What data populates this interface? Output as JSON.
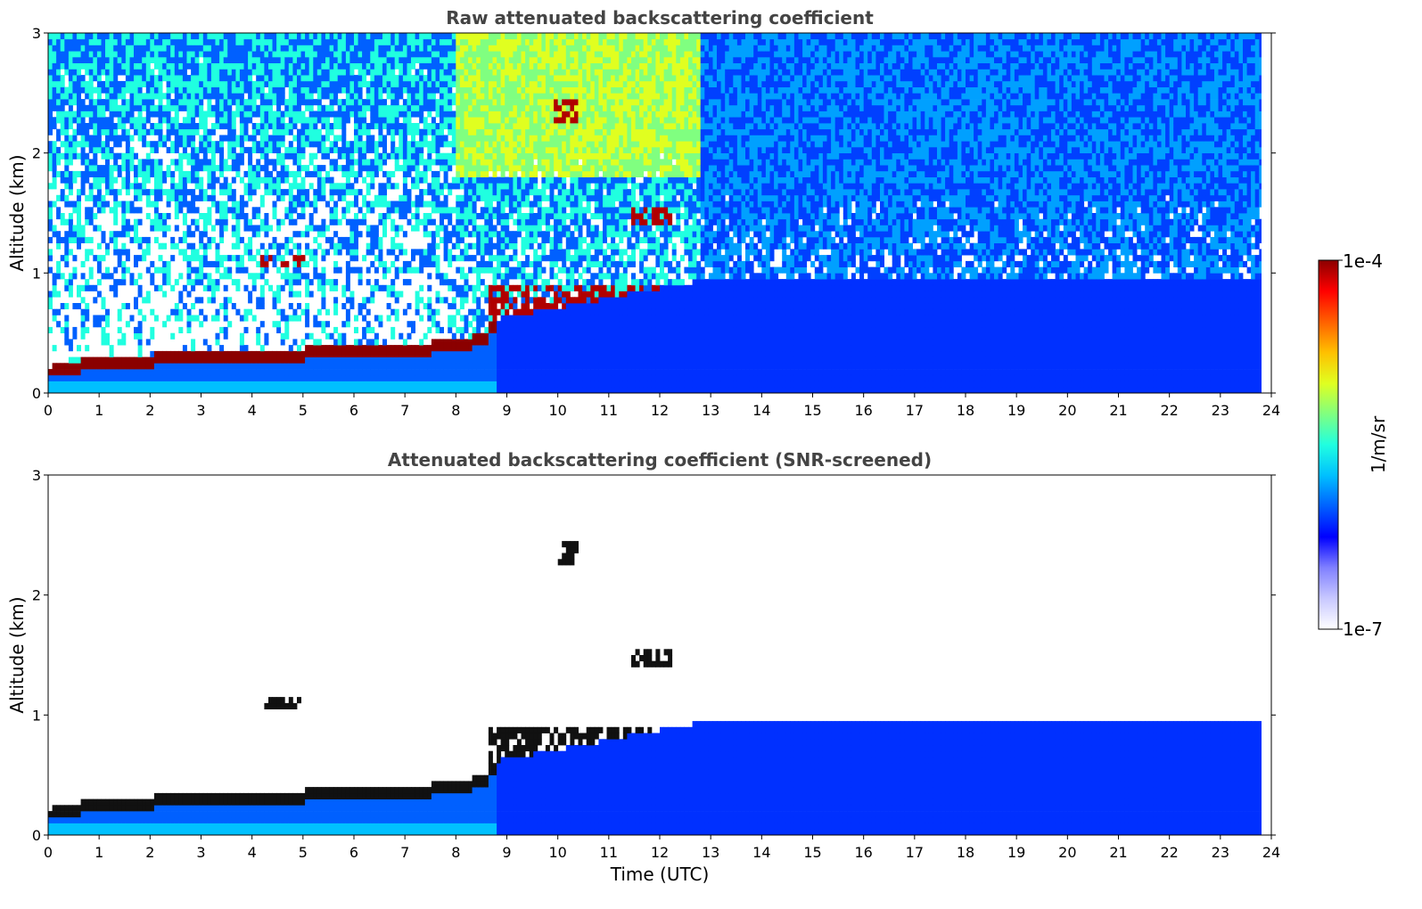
{
  "chart_data": [
    {
      "type": "heatmap",
      "title": "Raw attenuated backscattering coefficient",
      "xlabel": "",
      "ylabel": "Altitude (km)",
      "xlim": [
        0,
        24
      ],
      "ylim": [
        0,
        3
      ],
      "xticks": [
        "0",
        "1",
        "2",
        "3",
        "4",
        "5",
        "6",
        "7",
        "8",
        "9",
        "10",
        "11",
        "12",
        "13",
        "14",
        "15",
        "16",
        "17",
        "18",
        "19",
        "20",
        "21",
        "22",
        "23",
        "24"
      ],
      "yticks": [
        "0",
        "1",
        "2",
        "3"
      ],
      "data_end_time": 23.8,
      "features": [
        {
          "kind": "boundary-layer",
          "x": [
            0,
            1,
            2,
            3,
            4,
            5,
            6,
            7,
            8,
            8.6
          ],
          "top_km": [
            0.2,
            0.28,
            0.3,
            0.31,
            0.33,
            0.35,
            0.36,
            0.38,
            0.42,
            0.48
          ]
        },
        {
          "kind": "cloud",
          "x": [
            4.1,
            5.0
          ],
          "y": [
            1.05,
            1.15
          ]
        },
        {
          "kind": "cloud",
          "x": [
            9.9,
            10.4
          ],
          "y": [
            2.25,
            2.4
          ]
        },
        {
          "kind": "cloud",
          "x": [
            11.4,
            12.2
          ],
          "y": [
            1.4,
            1.55
          ]
        },
        {
          "kind": "cloud",
          "x": [
            8.6,
            12.5
          ],
          "y": [
            0.6,
            0.9
          ]
        }
      ]
    },
    {
      "type": "heatmap",
      "title": "Attenuated backscattering coefficient (SNR-screened)",
      "xlabel": "Time (UTC)",
      "ylabel": "Altitude (km)",
      "xlim": [
        0,
        24
      ],
      "ylim": [
        0,
        3
      ],
      "xticks": [
        "0",
        "1",
        "2",
        "3",
        "4",
        "5",
        "6",
        "7",
        "8",
        "9",
        "10",
        "11",
        "12",
        "13",
        "14",
        "15",
        "16",
        "17",
        "18",
        "19",
        "20",
        "21",
        "22",
        "23",
        "24"
      ],
      "yticks": [
        "0",
        "1",
        "2",
        "3"
      ],
      "data_end_time": 23.8
    }
  ],
  "colorbar": {
    "label": "1/m/sr",
    "max_label": "1e-4",
    "min_label": "1e-7",
    "min": 1e-07,
    "max": 0.0001,
    "scale": "log",
    "colors": [
      "#ffffff",
      "#c8c8ff",
      "#8080ff",
      "#0000ff",
      "#0060ff",
      "#00c0ff",
      "#20ffe0",
      "#80ff80",
      "#e0ff20",
      "#ffc000",
      "#ff6000",
      "#ff0000",
      "#8b0000"
    ]
  }
}
